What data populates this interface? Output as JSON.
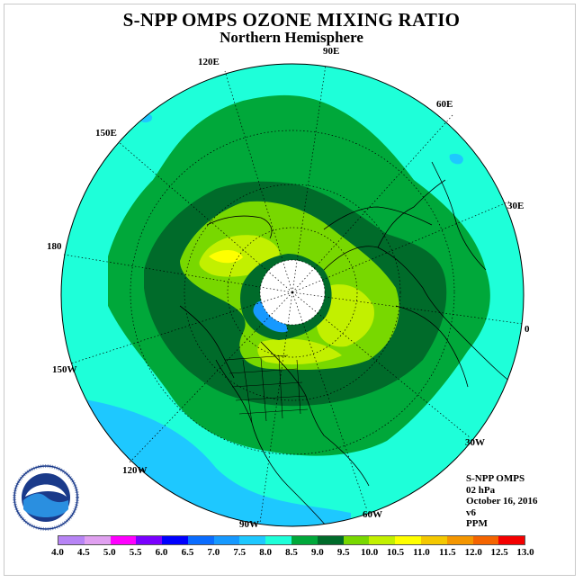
{
  "title": "S-NPP OMPS OZONE MIXING RATIO",
  "subtitle": "Northern Hemisphere",
  "projection": "north-polar-stereographic",
  "longitude_labels": [
    "90E",
    "60E",
    "30E",
    "0",
    "30W",
    "60W",
    "90W",
    "120W",
    "150W",
    "180",
    "150E",
    "120E"
  ],
  "info": {
    "instrument": "S-NPP OMPS",
    "pressure": "02 hPa",
    "date": "October 16, 2016",
    "version": "v6",
    "units": "PPM"
  },
  "colorbar": {
    "labels": [
      "4.0",
      "4.5",
      "5.0",
      "5.5",
      "6.0",
      "6.5",
      "7.0",
      "7.5",
      "8.0",
      "8.5",
      "9.0",
      "9.5",
      "10.0",
      "10.5",
      "11.0",
      "11.5",
      "12.0",
      "12.5",
      "13.0"
    ],
    "colors": [
      "#b784f5",
      "#e0a0f0",
      "#ff00ff",
      "#7a00ff",
      "#0000ff",
      "#0a6cff",
      "#1699ff",
      "#1ec8ff",
      "#1effd9",
      "#00a83a",
      "#006b2a",
      "#78d800",
      "#c2f000",
      "#ffff00",
      "#f4c800",
      "#f49600",
      "#f46400",
      "#f40000",
      "#8b4a2a"
    ]
  },
  "legend_colors": {
    "level_7_5": "#1ec8ff",
    "level_8_0": "#1effd9",
    "level_8_5": "#00a83a",
    "level_9_0": "#006b2a",
    "level_9_5": "#78d800",
    "level_10_0": "#c2f000",
    "level_10_5": "#ffff00"
  },
  "logo_name": "noaa-logo"
}
